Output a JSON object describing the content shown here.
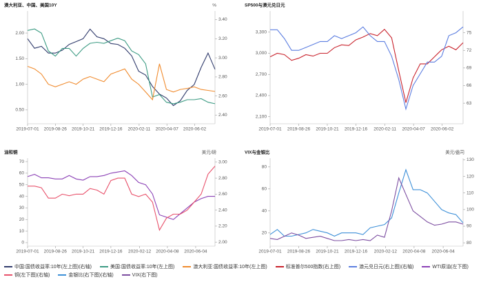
{
  "chart_data": [
    {
      "type": "line",
      "title": "澳大利亚、中国、美国10Y",
      "y2_label": "%",
      "x": [
        "2019-07-01",
        "2019-07-15",
        "2019-07-29",
        "2019-08-12",
        "2019-08-26",
        "2019-09-09",
        "2019-09-23",
        "2019-10-07",
        "2019-10-21",
        "2019-11-04",
        "2019-11-18",
        "2019-12-02",
        "2019-12-16",
        "2019-12-30",
        "2020-01-13",
        "2020-01-27",
        "2020-02-10",
        "2020-02-24",
        "2020-03-09",
        "2020-03-23",
        "2020-04-06",
        "2020-04-20",
        "2020-05-04",
        "2020-05-18",
        "2020-06-01",
        "2020-06-15",
        "2020-06-29",
        "2020-07-13"
      ],
      "xlim": [
        "2019-07-01",
        "2020-07-13"
      ],
      "xticks": [
        "2019-07-01",
        "2019-08-26",
        "2019-10-21",
        "2019-12-16",
        "2020-02-11",
        "2020-04-07",
        "2020-06-02"
      ],
      "ylim": [
        0.23,
        2.43
      ],
      "yticks": [
        {
          "value": 0.5,
          "label": "0.50"
        },
        {
          "value": 1,
          "label": "1.00"
        },
        {
          "value": 1.5,
          "label": "1.50"
        },
        {
          "value": 2,
          "label": "2.00"
        }
      ],
      "y2lim": [
        2.31,
        3.49
      ],
      "y2ticks": [
        {
          "value": 2.4,
          "label": "2.40"
        },
        {
          "value": 2.6,
          "label": "2.60"
        },
        {
          "value": 2.8,
          "label": "2.80"
        },
        {
          "value": 3,
          "label": "3.00"
        },
        {
          "value": 3.2,
          "label": "3.20"
        },
        {
          "value": 3.4,
          "label": "3.40"
        }
      ],
      "series": [
        {
          "name": "中国:国债收益率:10年(左上图)(右轴)",
          "color": "#2f3a6b",
          "axis": "y2",
          "values": [
            3.2,
            3.1,
            3.12,
            3.05,
            3.05,
            3.08,
            3.14,
            3.17,
            3.2,
            3.3,
            3.22,
            3.2,
            3.15,
            3.14,
            3.1,
            3.02,
            2.86,
            2.82,
            2.7,
            2.62,
            2.58,
            2.5,
            2.55,
            2.66,
            2.72,
            2.9,
            3.05,
            2.88
          ]
        },
        {
          "name": "美国:国债收益率:10年(左上图)",
          "color": "#3a9a82",
          "values": [
            2.05,
            2.08,
            2.0,
            1.65,
            1.55,
            1.7,
            1.7,
            1.55,
            1.7,
            1.8,
            1.82,
            1.8,
            1.85,
            1.9,
            1.85,
            1.65,
            1.58,
            1.4,
            0.75,
            0.8,
            0.65,
            0.62,
            0.65,
            0.7,
            0.7,
            0.72,
            0.65,
            0.62
          ]
        },
        {
          "name": "澳大利亚:国债收益率:10年(左上图)",
          "color": "#f08a2c",
          "values": [
            1.35,
            1.3,
            1.2,
            1.0,
            0.95,
            1.0,
            1.05,
            1.0,
            1.1,
            1.15,
            1.1,
            1.05,
            1.2,
            1.25,
            1.3,
            1.1,
            1.0,
            0.85,
            0.7,
            1.4,
            0.9,
            0.85,
            0.9,
            0.92,
            0.95,
            0.9,
            0.88,
            0.86
          ]
        }
      ]
    },
    {
      "type": "line",
      "title": "SP500与澳元兑日元",
      "x": [
        "2019-07-01",
        "2019-07-15",
        "2019-07-29",
        "2019-08-12",
        "2019-08-26",
        "2019-09-09",
        "2019-09-23",
        "2019-10-07",
        "2019-10-21",
        "2019-11-04",
        "2019-11-18",
        "2019-12-02",
        "2019-12-16",
        "2019-12-30",
        "2020-01-13",
        "2020-01-27",
        "2020-02-10",
        "2020-02-24",
        "2020-03-09",
        "2020-03-23",
        "2020-04-06",
        "2020-04-20",
        "2020-05-04",
        "2020-05-18",
        "2020-06-01",
        "2020-06-15",
        "2020-06-29",
        "2020-07-13"
      ],
      "xlim": [
        "2019-07-01",
        "2020-07-13"
      ],
      "xticks": [
        "2019-07-01",
        "2019-08-26",
        "2019-10-21",
        "2019-12-16",
        "2020-02-11",
        "2020-04-07",
        "2020-06-02"
      ],
      "ylim": [
        2000,
        3600
      ],
      "yticks": [
        {
          "value": 2100,
          "label": "2,100"
        },
        {
          "value": 2400,
          "label": "2,400"
        },
        {
          "value": 2700,
          "label": "2,700"
        },
        {
          "value": 3000,
          "label": "3,000"
        },
        {
          "value": 3300,
          "label": "3,300"
        }
      ],
      "y2lim": [
        59.5,
        78.7
      ],
      "y2ticks": [
        63,
        66,
        69,
        72,
        75
      ],
      "series": [
        {
          "name": "标准普尔500指数(右上图)",
          "color": "#c8202a",
          "values": [
            2950,
            3000,
            2980,
            2900,
            2930,
            2980,
            2960,
            3000,
            3000,
            3080,
            3120,
            3110,
            3190,
            3230,
            3280,
            3250,
            3340,
            3220,
            2750,
            2300,
            2650,
            2850,
            2850,
            2950,
            3050,
            3100,
            3050,
            3150
          ]
        },
        {
          "name": "澳元兑日元(右上图)(右轴)",
          "color": "#5b7de0",
          "axis": "y2",
          "values": [
            75.5,
            75.5,
            74,
            72,
            72,
            72.5,
            73,
            73.5,
            73.5,
            74.5,
            74,
            74.5,
            75,
            76,
            74.5,
            73.5,
            73.5,
            71,
            67,
            62,
            66,
            68,
            70,
            70,
            71,
            74.5,
            75,
            76
          ]
        }
      ]
    },
    {
      "type": "line",
      "title": "油和铜",
      "y2_label": "美元/磅",
      "x": [
        "2019-07-01",
        "2019-07-15",
        "2019-07-29",
        "2019-08-12",
        "2019-08-26",
        "2019-09-09",
        "2019-09-23",
        "2019-10-07",
        "2019-10-21",
        "2019-11-04",
        "2019-11-18",
        "2019-12-02",
        "2019-12-16",
        "2019-12-30",
        "2020-01-13",
        "2020-01-27",
        "2020-02-10",
        "2020-02-24",
        "2020-03-09",
        "2020-03-23",
        "2020-04-06",
        "2020-04-20",
        "2020-05-04",
        "2020-05-18",
        "2020-06-01",
        "2020-06-15",
        "2020-06-29",
        "2020-07-13"
      ],
      "xlim": [
        "2019-07-01",
        "2020-07-13"
      ],
      "xticks": [
        "2019-07-01",
        "2019-08-26",
        "2019-10-21",
        "2019-12-16",
        "2020-02-12",
        "2020-04-08",
        "2020-06-04"
      ],
      "ylim": [
        -3,
        73
      ],
      "yticks": [
        0,
        10,
        20,
        30,
        40,
        50,
        60,
        70
      ],
      "y2lim": [
        1.95,
        3.05
      ],
      "y2ticks": [
        {
          "value": 2,
          "label": "2.00"
        },
        {
          "value": 2.2,
          "label": "2.20"
        },
        {
          "value": 2.4,
          "label": "2.40"
        },
        {
          "value": 2.6,
          "label": "2.60"
        },
        {
          "value": 2.8,
          "label": "2.80"
        },
        {
          "value": 3,
          "label": "3.00"
        }
      ],
      "series": [
        {
          "name": "WTI原油(左下图)",
          "color": "#8a3fb5",
          "values": [
            57,
            59,
            56,
            56,
            55,
            55,
            58,
            55,
            54,
            57,
            57,
            58,
            60,
            61,
            62,
            58,
            52,
            50,
            42,
            24,
            22,
            20,
            25,
            30,
            35,
            38,
            40,
            40
          ]
        },
        {
          "name": "铜(左下图)(右轴)",
          "color": "#e8506a",
          "axis": "y2",
          "values": [
            2.7,
            2.7,
            2.68,
            2.55,
            2.55,
            2.6,
            2.58,
            2.6,
            2.6,
            2.67,
            2.65,
            2.6,
            2.77,
            2.8,
            2.8,
            2.6,
            2.57,
            2.6,
            2.5,
            2.15,
            2.3,
            2.35,
            2.35,
            2.4,
            2.5,
            2.6,
            2.85,
            2.95
          ]
        }
      ]
    },
    {
      "type": "line",
      "title": "VIX与金银比",
      "y2_label": "美元/盎司",
      "x": [
        "2019-07-01",
        "2019-07-15",
        "2019-07-29",
        "2019-08-12",
        "2019-08-26",
        "2019-09-09",
        "2019-09-23",
        "2019-10-07",
        "2019-10-21",
        "2019-11-04",
        "2019-11-18",
        "2019-12-02",
        "2019-12-16",
        "2019-12-30",
        "2020-01-13",
        "2020-01-27",
        "2020-02-10",
        "2020-02-24",
        "2020-03-09",
        "2020-03-23",
        "2020-04-06",
        "2020-04-20",
        "2020-05-04",
        "2020-05-18",
        "2020-06-01",
        "2020-06-15",
        "2020-06-29",
        "2020-07-13"
      ],
      "xlim": [
        "2019-07-01",
        "2020-07-13"
      ],
      "xticks": [
        "2019-07-01",
        "2019-08-26",
        "2019-10-21",
        "2019-12-16",
        "2020-02-12",
        "2020-04-08",
        "2020-06-04"
      ],
      "ylim": [
        8,
        88
      ],
      "yticks": [
        20,
        40,
        60,
        80
      ],
      "y2lim": [
        78,
        131
      ],
      "y2ticks": [
        80,
        90,
        100,
        110,
        120,
        130
      ],
      "series": [
        {
          "name": "金银比(右下图)(右轴)",
          "color": "#3c8fd8",
          "axis": "y2",
          "values": [
            85,
            88,
            84,
            84,
            85,
            86,
            88,
            87,
            86,
            84,
            86,
            86,
            86,
            85,
            89,
            90,
            91,
            95,
            110,
            124,
            112,
            112,
            110,
            105,
            100,
            98,
            97,
            92
          ]
        },
        {
          "name": "VIX(右下图)",
          "color": "#7b4ca0",
          "values": [
            15,
            14,
            17,
            20,
            18,
            15,
            16,
            17,
            15,
            13,
            13,
            14,
            13,
            14,
            13,
            18,
            16,
            40,
            70,
            55,
            40,
            35,
            30,
            27,
            28,
            30,
            30,
            28
          ]
        }
      ]
    }
  ]
}
